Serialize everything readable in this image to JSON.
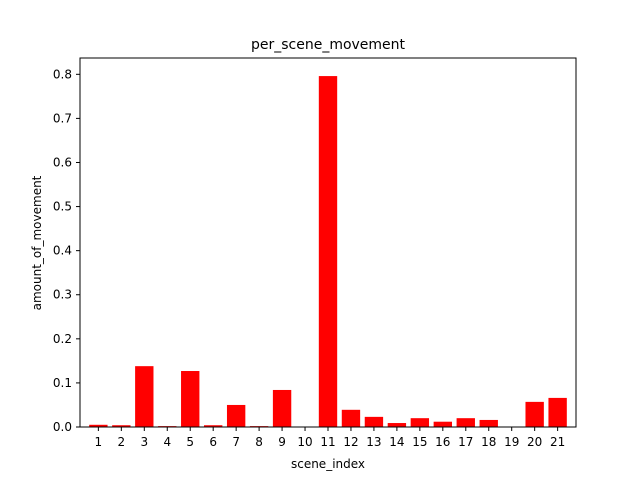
{
  "chart_data": {
    "type": "bar",
    "title": "per_scene_movement",
    "xlabel": "scene_index",
    "ylabel": "amount_of_movement",
    "categories": [
      "1",
      "2",
      "3",
      "4",
      "5",
      "6",
      "7",
      "8",
      "9",
      "10",
      "11",
      "12",
      "13",
      "14",
      "15",
      "16",
      "17",
      "18",
      "19",
      "20",
      "21"
    ],
    "values": [
      0.005,
      0.004,
      0.138,
      0.002,
      0.127,
      0.004,
      0.05,
      0.002,
      0.084,
      0.001,
      0.796,
      0.039,
      0.023,
      0.009,
      0.02,
      0.012,
      0.02,
      0.016,
      0.0,
      0.057,
      0.066
    ],
    "ylim": [
      0,
      0.837
    ],
    "yticks": [
      0.0,
      0.1,
      0.2,
      0.3,
      0.4,
      0.5,
      0.6,
      0.7,
      0.8
    ],
    "ytick_labels": [
      "0.0",
      "0.1",
      "0.2",
      "0.3",
      "0.4",
      "0.5",
      "0.6",
      "0.7",
      "0.8"
    ],
    "bar_color": "#ff0000",
    "grid": false,
    "legend": "none"
  }
}
